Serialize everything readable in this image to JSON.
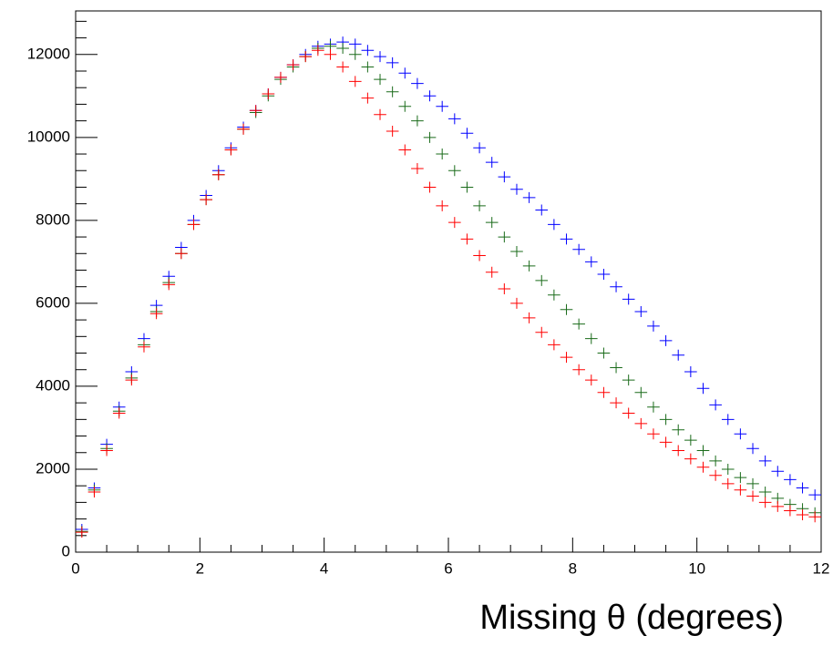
{
  "chart_data": {
    "type": "histogram-points",
    "x_label": "Missing θ (degrees)",
    "xlim": [
      0,
      12
    ],
    "xticks": [
      0,
      2,
      4,
      6,
      8,
      10,
      12
    ],
    "ylim": [
      0,
      13050
    ],
    "yticks": [
      0,
      2000,
      4000,
      6000,
      8000,
      10000,
      12000
    ],
    "x": [
      0.1,
      0.3,
      0.5,
      0.7,
      0.9,
      1.1,
      1.3,
      1.5,
      1.7,
      1.9,
      2.1,
      2.3,
      2.5,
      2.7,
      2.9,
      3.1,
      3.3,
      3.5,
      3.7,
      3.9,
      4.1,
      4.3,
      4.5,
      4.7,
      4.9,
      5.1,
      5.3,
      5.5,
      5.7,
      5.9,
      6.1,
      6.3,
      6.5,
      6.7,
      6.9,
      7.1,
      7.3,
      7.5,
      7.7,
      7.9,
      8.1,
      8.3,
      8.5,
      8.7,
      8.9,
      9.1,
      9.3,
      9.5,
      9.7,
      9.9,
      10.1,
      10.3,
      10.5,
      10.7,
      10.9,
      11.1,
      11.3,
      11.5,
      11.7,
      11.9
    ],
    "series": [
      {
        "name": "blue",
        "color": "#0000ff",
        "values": [
          550,
          1550,
          2600,
          3500,
          4350,
          5150,
          5950,
          6650,
          7350,
          8000,
          8600,
          9200,
          9750,
          10250,
          10650,
          11050,
          11450,
          11750,
          12000,
          12200,
          12250,
          12300,
          12250,
          12100,
          11950,
          11800,
          11550,
          11300,
          11000,
          10750,
          10450,
          10100,
          9750,
          9400,
          9050,
          8750,
          8550,
          8250,
          7900,
          7550,
          7300,
          7000,
          6700,
          6400,
          6100,
          5800,
          5450,
          5100,
          4750,
          4350,
          3950,
          3550,
          3200,
          2850,
          2500,
          2200,
          1950,
          1750,
          1550,
          1380
        ]
      },
      {
        "name": "green",
        "color": "#1a6b1a",
        "values": [
          500,
          1500,
          2500,
          3400,
          4200,
          5000,
          5800,
          6500,
          7200,
          7900,
          8500,
          9100,
          9700,
          10200,
          10600,
          11000,
          11400,
          11700,
          11950,
          12150,
          12200,
          12150,
          12000,
          11700,
          11400,
          11100,
          10750,
          10400,
          10000,
          9600,
          9200,
          8800,
          8350,
          7950,
          7600,
          7250,
          6900,
          6550,
          6200,
          5850,
          5500,
          5150,
          4800,
          4450,
          4150,
          3850,
          3500,
          3200,
          2950,
          2700,
          2450,
          2200,
          2000,
          1800,
          1650,
          1450,
          1300,
          1150,
          1050,
          950
        ]
      },
      {
        "name": "red",
        "color": "#ff0000",
        "values": [
          480,
          1450,
          2450,
          3350,
          4150,
          4950,
          5750,
          6450,
          7200,
          7900,
          8500,
          9100,
          9700,
          10200,
          10650,
          11050,
          11450,
          11750,
          11950,
          12100,
          12000,
          11700,
          11350,
          10950,
          10550,
          10150,
          9700,
          9250,
          8800,
          8350,
          7950,
          7550,
          7150,
          6750,
          6350,
          6000,
          5650,
          5300,
          5000,
          4700,
          4400,
          4150,
          3850,
          3600,
          3350,
          3100,
          2850,
          2650,
          2450,
          2250,
          2050,
          1850,
          1650,
          1500,
          1350,
          1200,
          1100,
          1000,
          900,
          850
        ]
      }
    ]
  }
}
